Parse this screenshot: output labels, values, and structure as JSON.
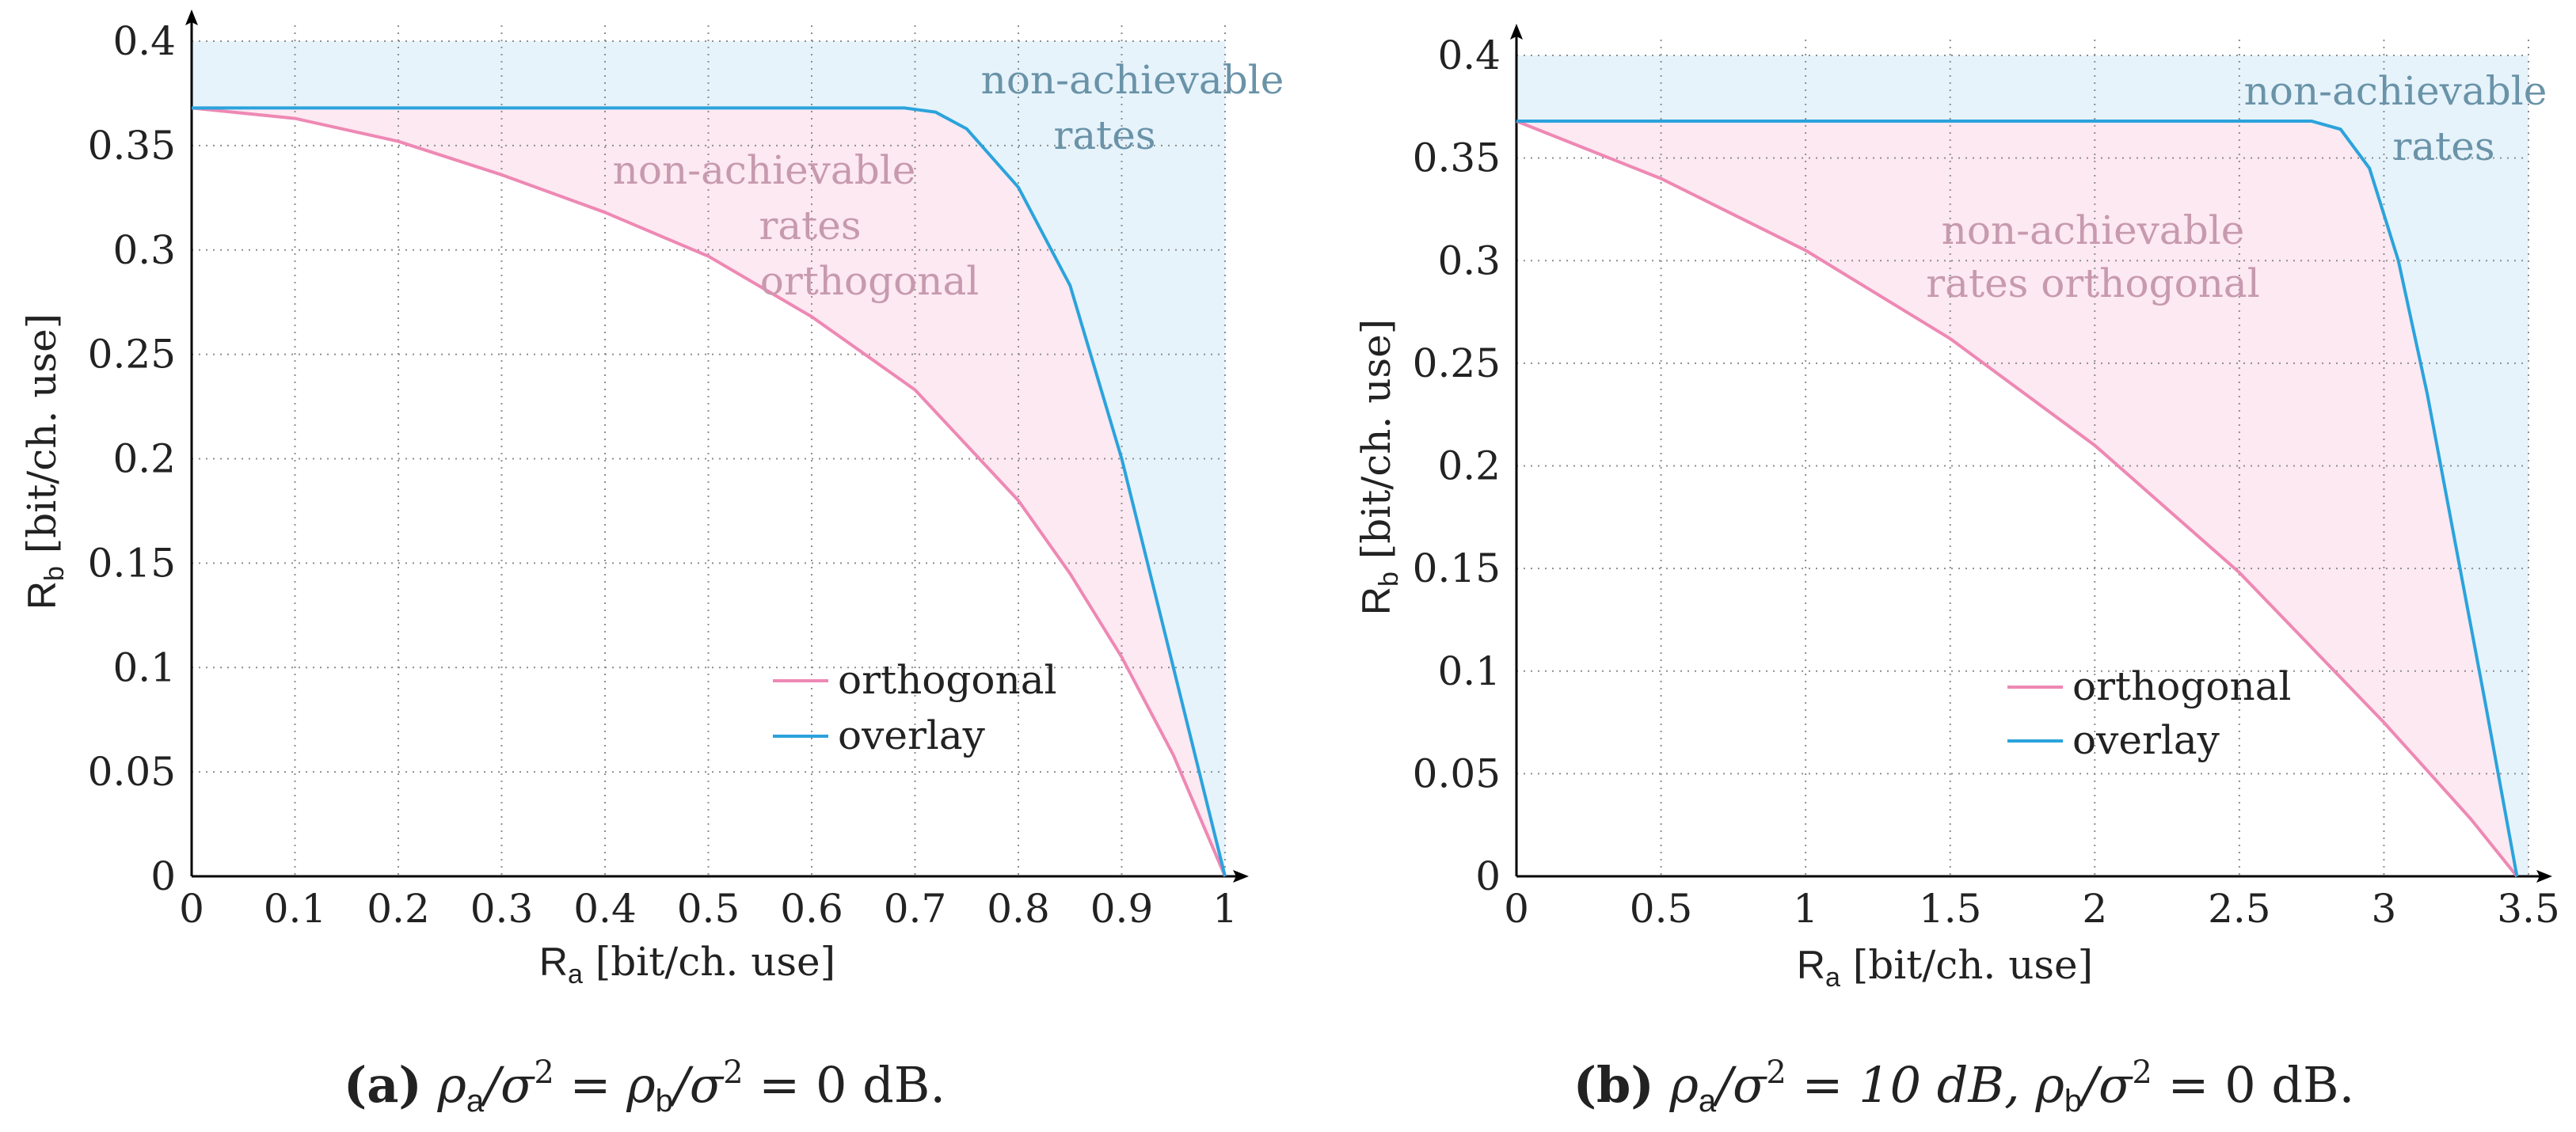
{
  "colors": {
    "orthogonal": "#ee88b4",
    "overlay": "#2ba3dc",
    "overlay_fill": "#e6f3fb",
    "orthogonal_fill": "#fde9f1"
  },
  "chart_data": [
    {
      "type": "line",
      "xlabel_main": "R",
      "xlabel_sub": "a",
      "xlabel_unit": " [bit/ch. use]",
      "ylabel_main": "R",
      "ylabel_sub": "b",
      "ylabel_unit": " [bit/ch. use]",
      "xlim": [
        0,
        1
      ],
      "ylim": [
        0,
        0.4
      ],
      "xticks": [
        0,
        0.1,
        0.2,
        0.3,
        0.4,
        0.5,
        0.6,
        0.7,
        0.8,
        0.9,
        1
      ],
      "xtick_labels": [
        "0",
        "0.1",
        "0.2",
        "0.3",
        "0.4",
        "0.5",
        "0.6",
        "0.7",
        "0.8",
        "0.9",
        "1"
      ],
      "yticks": [
        0,
        0.05,
        0.1,
        0.15,
        0.2,
        0.25,
        0.3,
        0.35,
        0.4
      ],
      "ytick_labels": [
        "0",
        "0.05",
        "0.1",
        "0.15",
        "0.2",
        "0.25",
        "0.3",
        "0.35",
        "0.4"
      ],
      "grid": true,
      "legend_position": "lower-right",
      "series": [
        {
          "name": "orthogonal",
          "x": [
            0,
            0.1,
            0.2,
            0.3,
            0.4,
            0.5,
            0.6,
            0.7,
            0.8,
            0.85,
            0.9,
            0.95,
            1.0
          ],
          "y": [
            0.368,
            0.363,
            0.352,
            0.336,
            0.318,
            0.297,
            0.268,
            0.233,
            0.18,
            0.145,
            0.105,
            0.058,
            0.0
          ]
        },
        {
          "name": "overlay",
          "x": [
            0,
            0.2,
            0.4,
            0.6,
            0.69,
            0.72,
            0.75,
            0.8,
            0.85,
            0.9,
            0.93,
            0.96,
            0.98,
            1.0
          ],
          "y": [
            0.368,
            0.368,
            0.368,
            0.368,
            0.368,
            0.366,
            0.358,
            0.33,
            0.283,
            0.2,
            0.14,
            0.08,
            0.04,
            0.0
          ]
        }
      ],
      "annotations": [
        {
          "region": "overlay",
          "lines": [
            "non-achievable",
            "rates"
          ]
        },
        {
          "region": "orthogonal",
          "lines": [
            "non-achievable",
            "rates",
            "orthogonal"
          ]
        }
      ],
      "caption": {
        "label": "(a)",
        "text_parts": [
          "ρ",
          "a",
          "/σ",
          "2",
          " = ρ",
          "b",
          "/σ",
          "2",
          " = 0 dB."
        ]
      }
    },
    {
      "type": "line",
      "xlabel_main": "R",
      "xlabel_sub": "a",
      "xlabel_unit": " [bit/ch. use]",
      "ylabel_main": "R",
      "ylabel_sub": "b",
      "ylabel_unit": " [bit/ch. use]",
      "xlim": [
        0,
        3.5
      ],
      "ylim": [
        0,
        0.4
      ],
      "xticks": [
        0,
        0.5,
        1,
        1.5,
        2,
        2.5,
        3,
        3.5
      ],
      "xtick_labels": [
        "0",
        "0.5",
        "1",
        "1.5",
        "2",
        "2.5",
        "3",
        "3.5"
      ],
      "yticks": [
        0,
        0.05,
        0.1,
        0.15,
        0.2,
        0.25,
        0.3,
        0.35,
        0.4
      ],
      "ytick_labels": [
        "0",
        "0.05",
        "0.1",
        "0.15",
        "0.2",
        "0.25",
        "0.3",
        "0.35",
        "0.4"
      ],
      "grid": true,
      "legend_position": "lower-right",
      "series": [
        {
          "name": "orthogonal",
          "x": [
            0,
            0.5,
            1.0,
            1.5,
            2.0,
            2.5,
            3.0,
            3.3,
            3.46
          ],
          "y": [
            0.368,
            0.34,
            0.305,
            0.262,
            0.21,
            0.148,
            0.075,
            0.028,
            0.0
          ]
        },
        {
          "name": "overlay",
          "x": [
            0,
            1.0,
            2.0,
            2.75,
            2.85,
            2.95,
            3.05,
            3.15,
            3.25,
            3.35,
            3.46
          ],
          "y": [
            0.368,
            0.368,
            0.368,
            0.368,
            0.364,
            0.345,
            0.3,
            0.235,
            0.16,
            0.085,
            0.0
          ]
        }
      ],
      "annotations": [
        {
          "region": "overlay",
          "lines": [
            "non-achievable",
            "rates"
          ]
        },
        {
          "region": "orthogonal",
          "lines": [
            "non-achievable",
            "rates orthogonal"
          ]
        }
      ],
      "caption": {
        "label": "(b)",
        "text_parts": [
          "ρ",
          "a",
          "/σ",
          "2",
          " = 10 dB, ρ",
          "b",
          "/σ",
          "2",
          " = 0 dB."
        ]
      }
    }
  ]
}
